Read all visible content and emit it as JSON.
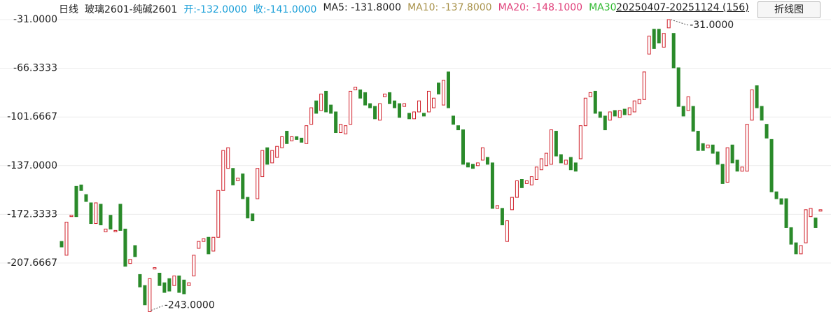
{
  "header": {
    "items": [
      {
        "text": "日线",
        "color": "#222222"
      },
      {
        "text": "玻璃2601-纯碱2601",
        "color": "#222222"
      },
      {
        "text": "开:-132.0000",
        "color": "#1a9fd8"
      },
      {
        "text": "收:-141.0000",
        "color": "#1a9fd8"
      },
      {
        "text": "MA5: -131.8000",
        "color": "#222222"
      },
      {
        "text": "MA10: -137.8000",
        "color": "#a8924a"
      },
      {
        "text": "MA20: -148.1000",
        "color": "#e0407a"
      },
      {
        "text": "MA30",
        "color": "#2eb82e"
      }
    ],
    "range": "20250407-20251124 (156)",
    "button": "折线图"
  },
  "chart_data": {
    "type": "candlestick",
    "up_color": "#d0202a",
    "down_color": "#2a8a2a",
    "grid": true,
    "ylim": [
      -243,
      -31
    ],
    "yticks": [
      {
        "value": -31,
        "label": "-31.0000"
      },
      {
        "value": -66.3333,
        "label": "-66.3333"
      },
      {
        "value": -101.6667,
        "label": "-101.6667"
      },
      {
        "value": -137,
        "label": "-137.0000"
      },
      {
        "value": -172.3333,
        "label": "-172.3333"
      },
      {
        "value": -207.6667,
        "label": "-207.6667"
      }
    ],
    "open": [
      -192,
      -202,
      -174,
      -152,
      -151,
      -158,
      -164,
      -179,
      -165,
      -185,
      -173,
      -185,
      -165,
      -183,
      -208,
      -195,
      -216,
      -224,
      -243,
      -212,
      -215,
      -222,
      -219,
      -224,
      -217,
      -220,
      -224,
      -217,
      -197,
      -192,
      -189,
      -199,
      -189,
      -155,
      -139,
      -139,
      -148,
      -143,
      -160,
      -172,
      -161,
      -145,
      -124,
      -135,
      -131,
      -124,
      -112,
      -119,
      -116,
      -117,
      -121,
      -107,
      -90,
      -97,
      -83,
      -93,
      -98,
      -113,
      -114,
      -107,
      -82,
      -82,
      -84,
      -92,
      -94,
      -104,
      -87,
      -84,
      -90,
      -92,
      -94,
      -99,
      -103,
      -98,
      -99,
      -98,
      -95,
      -77,
      -93,
      -69,
      -101,
      -108,
      -111,
      -135,
      -136,
      -137,
      -133,
      -131,
      -135,
      -168,
      -168,
      -192,
      -169,
      -160,
      -147,
      -150,
      -151,
      -147,
      -140,
      -137,
      -136,
      -112,
      -129,
      -136,
      -131,
      -135,
      -132,
      -108,
      -87,
      -83,
      -98,
      -101,
      -104,
      -97,
      -102,
      -96,
      -100,
      -98,
      -92,
      -89,
      -56,
      -38,
      -38,
      -51,
      -37,
      -41,
      -66,
      -94,
      -97,
      -94,
      -112,
      -121,
      -124,
      -122,
      -127,
      -136,
      -149,
      -122,
      -133,
      -141,
      -141,
      -104,
      -79,
      -94,
      -107,
      -118,
      -156,
      -161,
      -161,
      -182,
      -193,
      -201,
      -193,
      -174,
      -175,
      -170
    ],
    "close": [
      -196,
      -178,
      -173,
      -174,
      -155,
      -163,
      -179,
      -164,
      -180,
      -183,
      -183,
      -184,
      -184,
      -210,
      -205,
      -203,
      -225,
      -238,
      -219,
      -211,
      -224,
      -229,
      -228,
      -217,
      -229,
      -230,
      -222,
      -202,
      -192,
      -190,
      -201,
      -189,
      -155,
      -126,
      -124,
      -151,
      -146,
      -161,
      -175,
      -177,
      -139,
      -126,
      -136,
      -126,
      -123,
      -116,
      -121,
      -116,
      -118,
      -120,
      -108,
      -95,
      -99,
      -85,
      -98,
      -99,
      -113,
      -107,
      -108,
      -83,
      -80,
      -88,
      -93,
      -95,
      -103,
      -92,
      -85,
      -92,
      -95,
      -102,
      -92,
      -103,
      -98,
      -90,
      -101,
      -83,
      -88,
      -85,
      -75,
      -95,
      -107,
      -111,
      -136,
      -138,
      -139,
      -135,
      -124,
      -136,
      -168,
      -166,
      -180,
      -177,
      -160,
      -148,
      -153,
      -148,
      -145,
      -138,
      -132,
      -128,
      -111,
      -130,
      -135,
      -133,
      -140,
      -141,
      -108,
      -88,
      -84,
      -99,
      -102,
      -111,
      -98,
      -101,
      -97,
      -100,
      -95,
      -90,
      -89,
      -69,
      -43,
      -52,
      -48,
      -41,
      -31,
      -66,
      -94,
      -101,
      -87,
      -112,
      -126,
      -126,
      -122,
      -128,
      -136,
      -150,
      -124,
      -135,
      -141,
      -138,
      -107,
      -82,
      -95,
      -104,
      -117,
      -156,
      -161,
      -165,
      -182,
      -194,
      -201,
      -195,
      -169,
      -168,
      -182,
      -169
    ],
    "annotations": {
      "max_label": "-31.0000",
      "min_label": "-243.0000"
    }
  }
}
